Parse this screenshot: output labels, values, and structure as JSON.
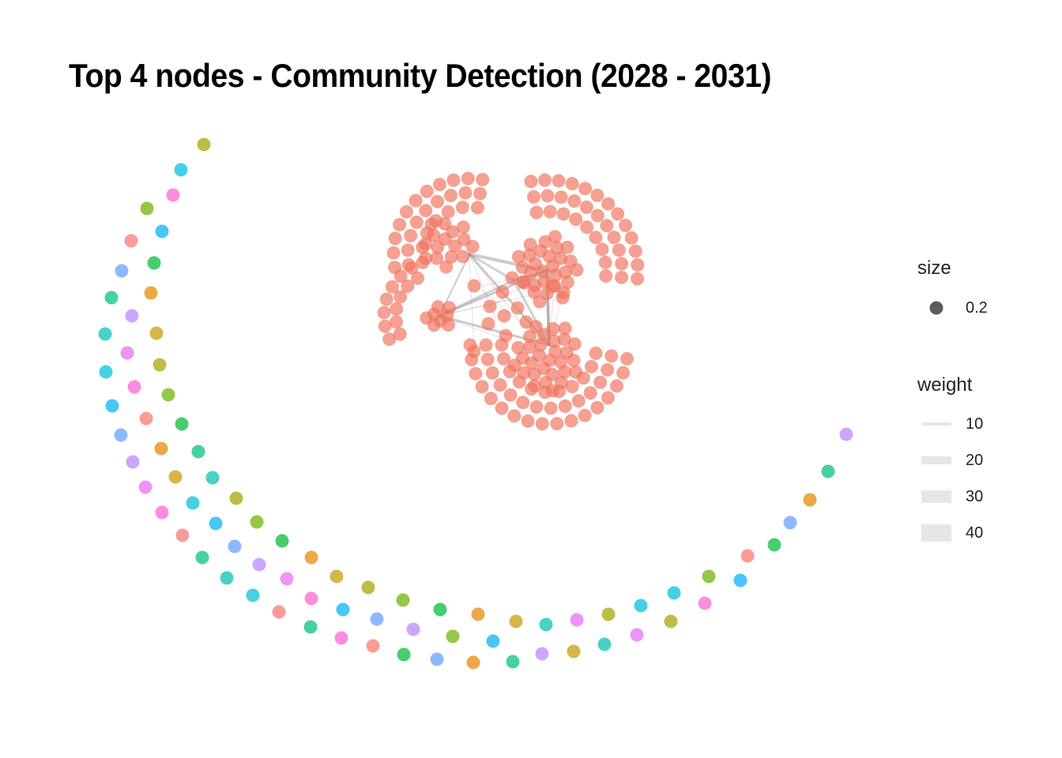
{
  "title": "Top 4 nodes - Community Detection (2028 - 2031)",
  "legend": {
    "size": {
      "title": "size",
      "items": [
        {
          "label": "0.2"
        }
      ]
    },
    "weight": {
      "title": "weight",
      "items": [
        {
          "label": "10"
        },
        {
          "label": "20"
        },
        {
          "label": "30"
        },
        {
          "label": "40"
        }
      ]
    }
  },
  "colors": {
    "main_community": "#F0735F",
    "edge": "#8C8C8C",
    "palette": [
      "#F8766D",
      "#E58700",
      "#C99800",
      "#A3A500",
      "#6BB100",
      "#00BA38",
      "#00BF7D",
      "#00C0AF",
      "#00BCD8",
      "#00B0F6",
      "#619CFF",
      "#B983FF",
      "#E76BF3",
      "#FD61D1"
    ]
  }
}
